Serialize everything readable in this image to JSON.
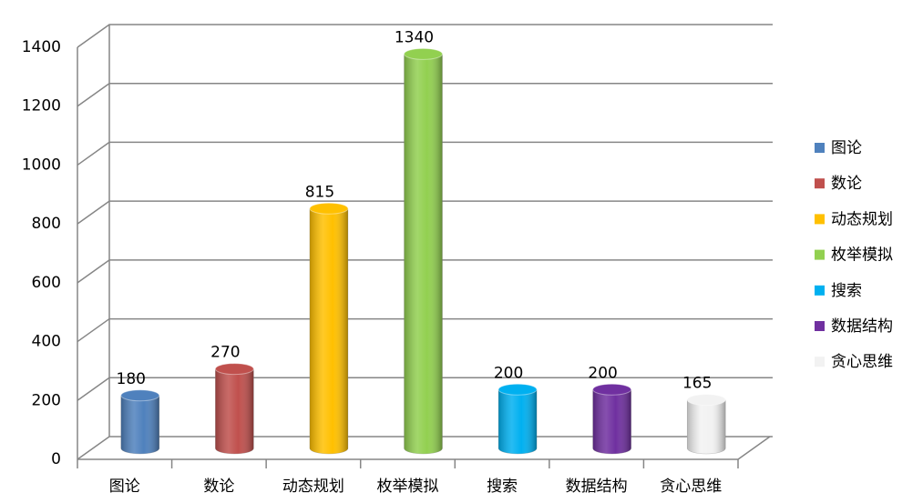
{
  "chart_data": {
    "type": "bar",
    "categories": [
      "图论",
      "数论",
      "动态规划",
      "枚举模拟",
      "搜索",
      "数据结构",
      "贪心思维"
    ],
    "values": [
      180,
      270,
      815,
      1340,
      200,
      200,
      165
    ],
    "colors": [
      "#4f81bd",
      "#c0504d",
      "#ffc000",
      "#92d050",
      "#00b0f0",
      "#7030a0",
      "#f2f2f2"
    ],
    "ylim": [
      0,
      1400
    ],
    "yticks": [
      0,
      200,
      400,
      600,
      800,
      1000,
      1200,
      1400
    ],
    "grid": true,
    "legend": "right"
  }
}
